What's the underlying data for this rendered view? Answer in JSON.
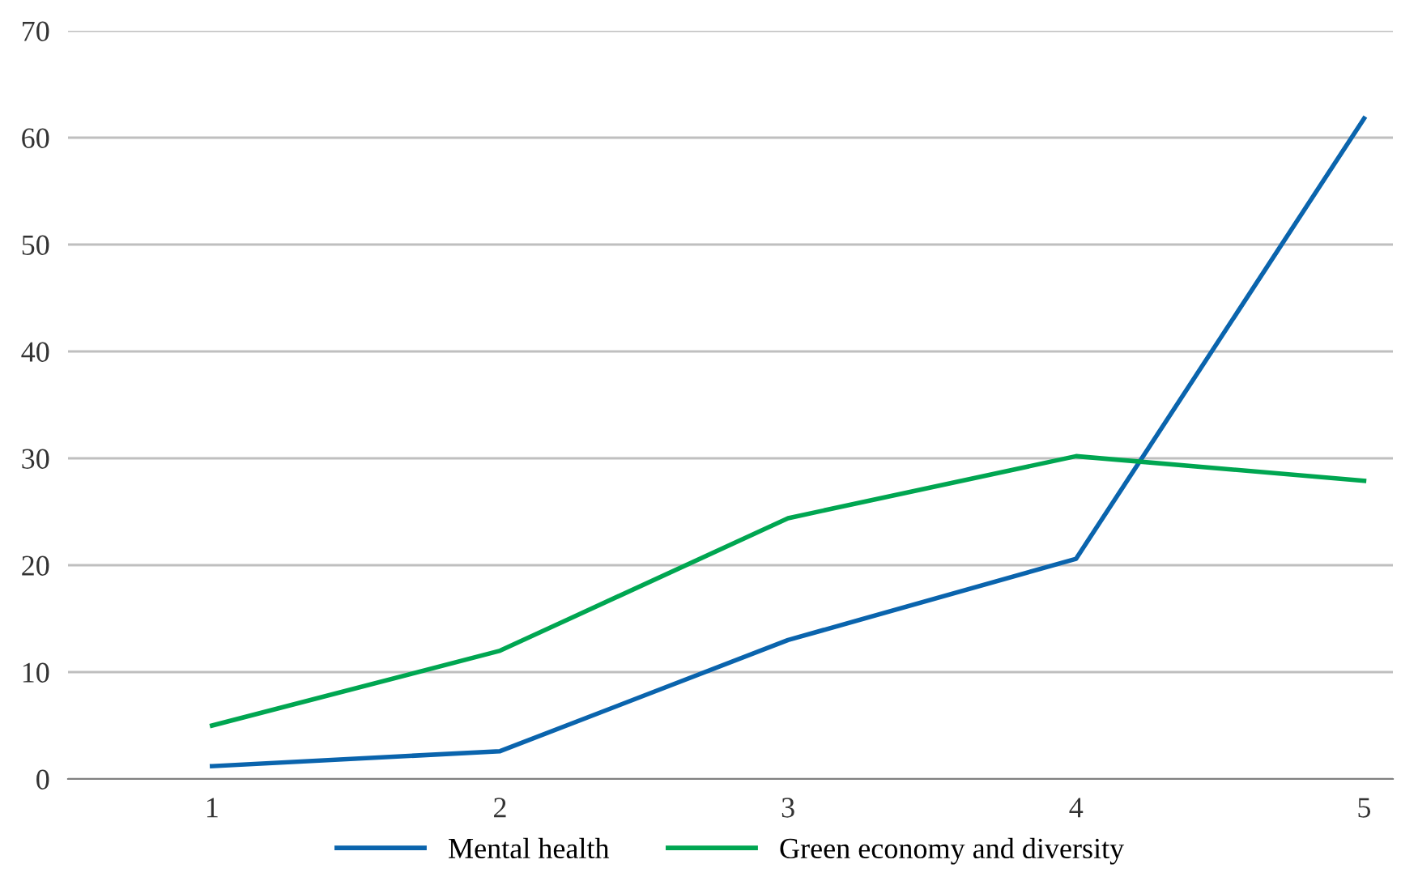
{
  "chart_data": {
    "type": "line",
    "categories": [
      "1",
      "2",
      "3",
      "4",
      "5"
    ],
    "series": [
      {
        "name": "Mental health",
        "color": "#0a64ad",
        "values": [
          1.2,
          2.6,
          13.0,
          20.6,
          61.8
        ]
      },
      {
        "name": "Green economy and diversity",
        "color": "#00a651",
        "values": [
          5.0,
          12.0,
          24.4,
          30.2,
          27.9
        ]
      }
    ],
    "ylim": [
      0,
      70
    ],
    "yticks": [
      0,
      10,
      20,
      30,
      40,
      50,
      60,
      70
    ],
    "grid": "y",
    "legend": "bottom",
    "marker": "none",
    "line_style": "solid"
  }
}
